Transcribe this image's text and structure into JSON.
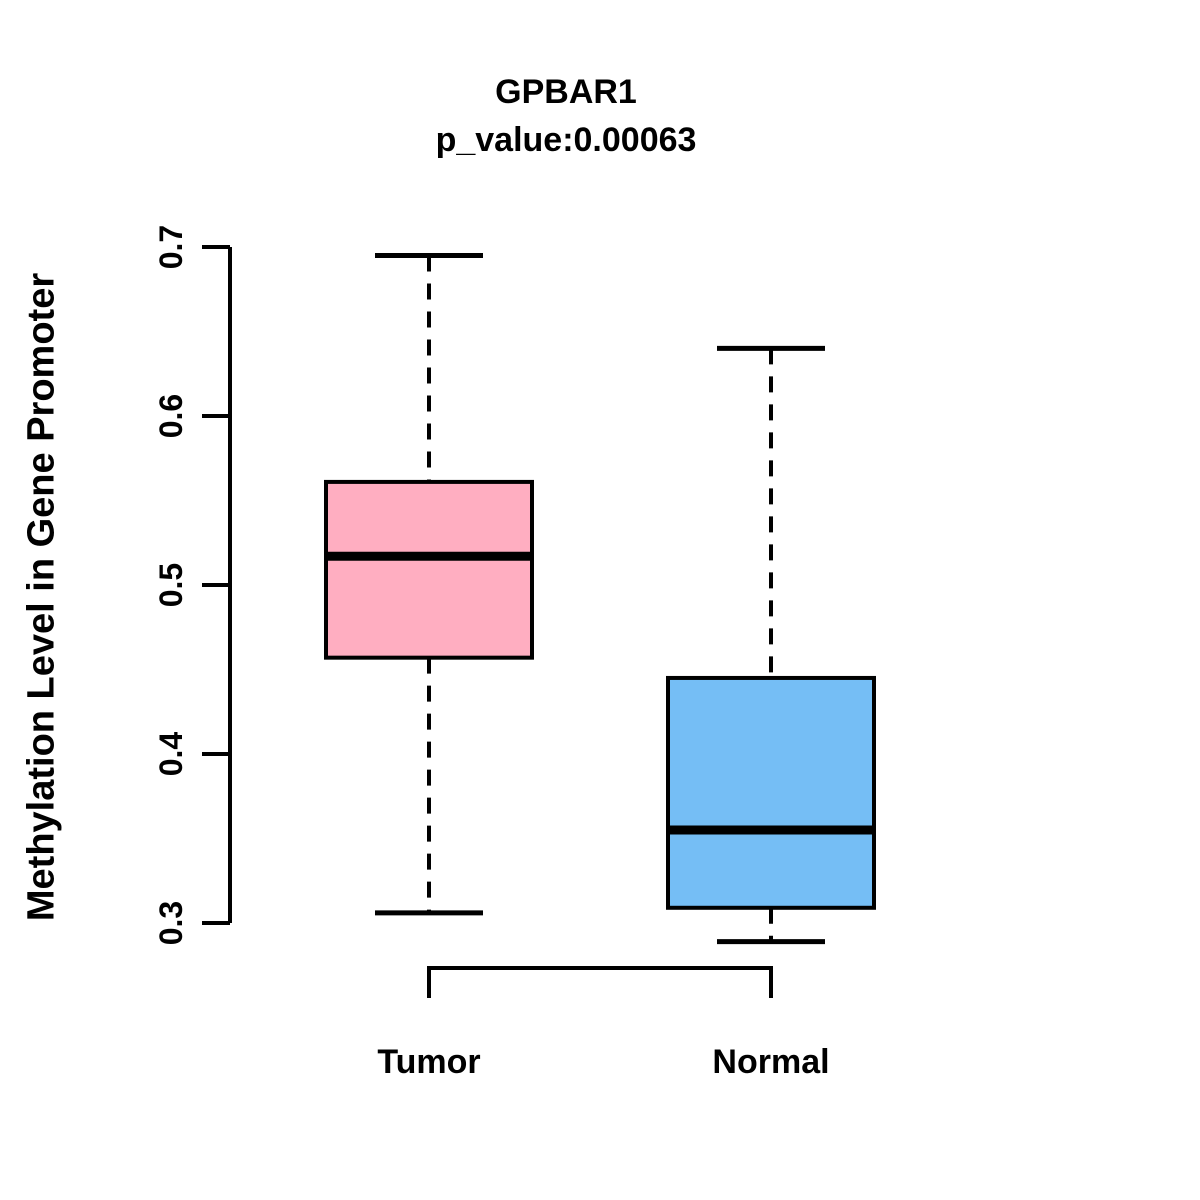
{
  "chart_data": {
    "type": "boxplot",
    "title": "GPBAR1",
    "subtitle": "p_value:0.00063",
    "p_value": "0.00063",
    "gene": "GPBAR1",
    "ylabel": "Methylation Level in Gene Promoter",
    "xlabel": "",
    "categories": [
      "Tumor",
      "Normal"
    ],
    "series": [
      {
        "name": "Tumor",
        "fill": "#FFAEC1",
        "min": 0.306,
        "q1": 0.457,
        "median": 0.517,
        "q3": 0.561,
        "max": 0.695
      },
      {
        "name": "Normal",
        "fill": "#75BEF5",
        "min": 0.289,
        "q1": 0.309,
        "median": 0.355,
        "q3": 0.445,
        "max": 0.64
      }
    ],
    "ylim": [
      0.3,
      0.7
    ],
    "yticks": [
      0.3,
      0.4,
      0.5,
      0.6,
      0.7
    ],
    "ytick_labels": [
      "0.3",
      "0.4",
      "0.5",
      "0.6",
      "0.7"
    ],
    "grid": false,
    "legend": "none",
    "whisker_style": "dashed",
    "line_color": "#000000",
    "background_color": "#FFFFFF"
  }
}
